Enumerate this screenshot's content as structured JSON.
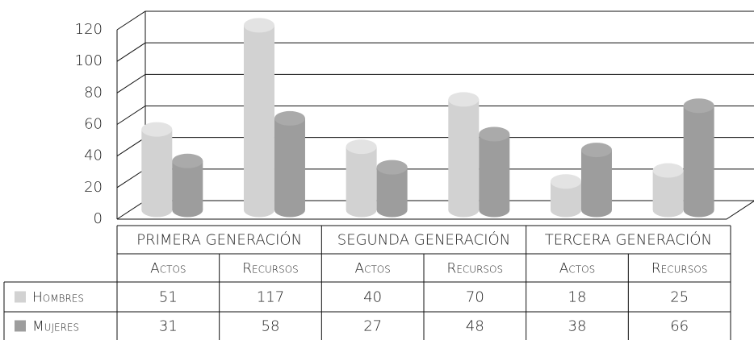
{
  "chart_data": {
    "type": "bar",
    "groups": [
      "PRIMERA GENERACIÓN",
      "SEGUNDA GENERACIÓN",
      "TERCERA GENERACIÓN"
    ],
    "categories": [
      "Actos",
      "Recursos",
      "Actos",
      "Recursos",
      "Actos",
      "Recursos"
    ],
    "series": [
      {
        "name": "Hombres",
        "color": "#d2d2d2",
        "values": [
          51,
          117,
          40,
          70,
          18,
          25
        ]
      },
      {
        "name": "Mujeres",
        "color": "#9d9d9d",
        "values": [
          31,
          58,
          27,
          48,
          38,
          66
        ]
      }
    ],
    "ylim": [
      0,
      120
    ],
    "yticks": [
      0,
      20,
      40,
      60,
      80,
      100,
      120
    ],
    "grid": true
  }
}
